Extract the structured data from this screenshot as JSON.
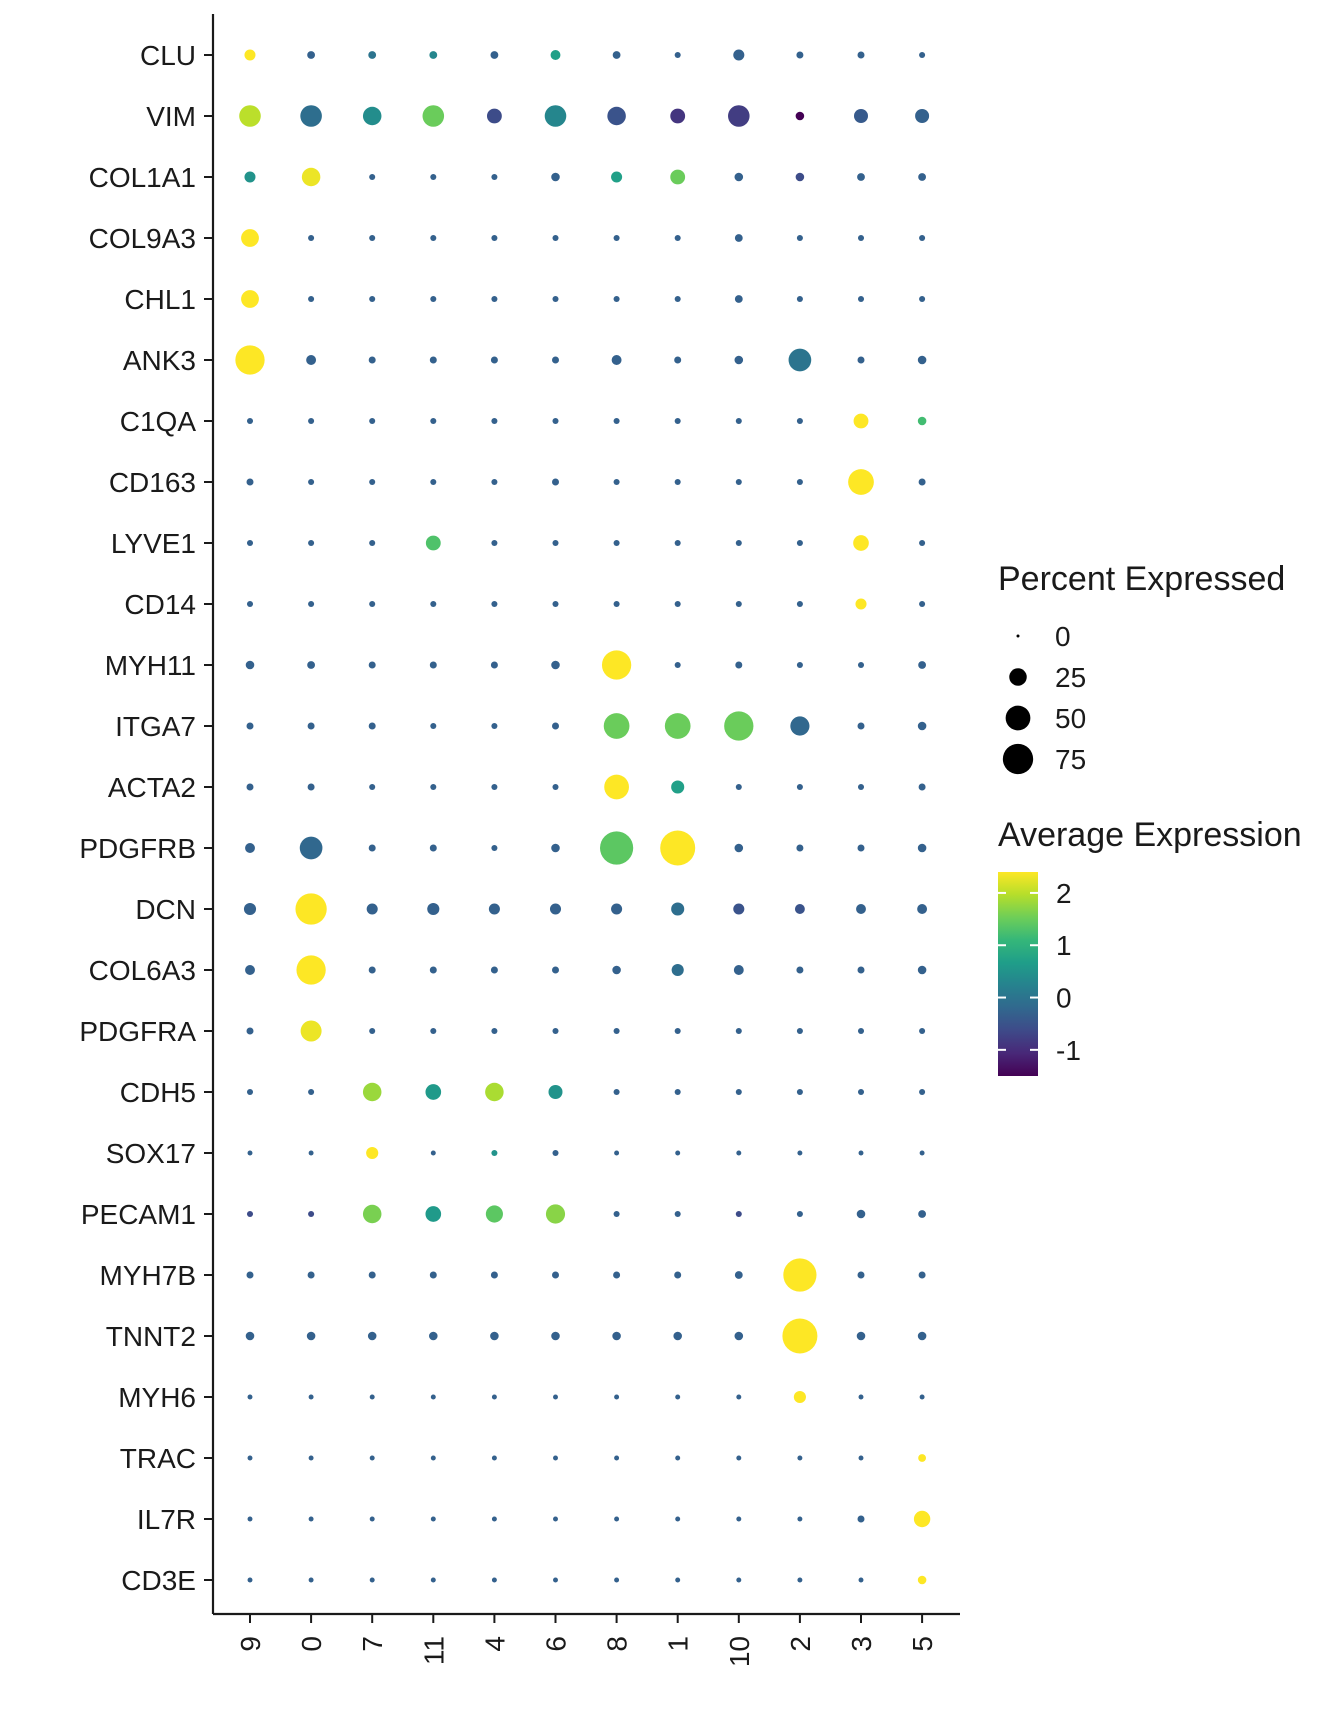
{
  "chart_data": {
    "type": "dotplot",
    "title": "",
    "xlabel": "",
    "ylabel": "",
    "clusters": [
      "9",
      "0",
      "7",
      "11",
      "4",
      "6",
      "8",
      "1",
      "10",
      "2",
      "3",
      "5"
    ],
    "genes": [
      "CLU",
      "VIM",
      "COL1A1",
      "COL9A3",
      "CHL1",
      "ANK3",
      "C1QA",
      "CD163",
      "LYVE1",
      "CD14",
      "MYH11",
      "ITGA7",
      "ACTA2",
      "PDGFRB",
      "DCN",
      "COL6A3",
      "PDGFRA",
      "CDH5",
      "SOX17",
      "PECAM1",
      "MYH7B",
      "TNNT2",
      "MYH6",
      "TRAC",
      "IL7R",
      "CD3E"
    ],
    "pct_range": [
      0,
      100
    ],
    "avg_range": [
      -1.5,
      2.4
    ],
    "percent_expressed": [
      [
        10,
        5,
        5,
        5,
        5,
        8,
        5,
        3,
        10,
        4,
        4,
        3
      ],
      [
        38,
        38,
        28,
        38,
        18,
        38,
        28,
        18,
        38,
        6,
        16,
        16
      ],
      [
        10,
        28,
        3,
        3,
        3,
        6,
        10,
        18,
        6,
        6,
        5,
        5
      ],
      [
        26,
        3,
        3,
        3,
        3,
        3,
        3,
        3,
        5,
        3,
        3,
        3
      ],
      [
        26,
        3,
        3,
        3,
        3,
        3,
        3,
        3,
        5,
        3,
        3,
        3
      ],
      [
        70,
        8,
        4,
        4,
        4,
        4,
        8,
        4,
        6,
        42,
        4,
        6
      ],
      [
        3,
        3,
        3,
        3,
        3,
        3,
        3,
        3,
        3,
        3,
        18,
        6
      ],
      [
        4,
        3,
        3,
        3,
        3,
        4,
        3,
        3,
        3,
        3,
        54,
        4
      ],
      [
        3,
        3,
        3,
        18,
        3,
        3,
        3,
        3,
        3,
        3,
        20,
        3
      ],
      [
        3,
        3,
        3,
        3,
        3,
        3,
        3,
        3,
        3,
        3,
        10,
        3
      ],
      [
        6,
        5,
        4,
        4,
        4,
        6,
        70,
        3,
        4,
        3,
        3,
        5
      ],
      [
        4,
        4,
        4,
        3,
        3,
        4,
        54,
        54,
        70,
        30,
        4,
        6
      ],
      [
        4,
        4,
        3,
        3,
        3,
        3,
        50,
        14,
        3,
        3,
        3,
        4
      ],
      [
        8,
        42,
        4,
        4,
        3,
        6,
        90,
        100,
        6,
        4,
        4,
        6
      ],
      [
        12,
        80,
        10,
        12,
        10,
        10,
        10,
        14,
        10,
        8,
        8,
        8
      ],
      [
        8,
        70,
        4,
        4,
        4,
        4,
        6,
        12,
        8,
        4,
        4,
        6
      ],
      [
        4,
        36,
        3,
        3,
        3,
        3,
        3,
        3,
        3,
        3,
        3,
        3
      ],
      [
        3,
        3,
        28,
        20,
        28,
        16,
        3,
        3,
        3,
        3,
        3,
        3
      ],
      [
        2,
        2,
        12,
        2,
        3,
        3,
        2,
        2,
        2,
        2,
        2,
        2
      ],
      [
        3,
        3,
        28,
        20,
        24,
        30,
        3,
        3,
        3,
        3,
        6,
        5
      ],
      [
        4,
        4,
        4,
        4,
        4,
        4,
        4,
        4,
        5,
        90,
        4,
        4
      ],
      [
        6,
        6,
        6,
        6,
        6,
        6,
        6,
        6,
        6,
        100,
        6,
        6
      ],
      [
        2,
        2,
        2,
        2,
        2,
        2,
        2,
        2,
        2,
        12,
        2,
        2
      ],
      [
        2,
        2,
        2,
        2,
        2,
        2,
        2,
        2,
        2,
        2,
        2,
        5
      ],
      [
        2,
        2,
        2,
        2,
        2,
        2,
        2,
        2,
        2,
        2,
        4,
        22
      ],
      [
        2,
        2,
        2,
        2,
        2,
        2,
        2,
        2,
        2,
        2,
        2,
        6
      ]
    ],
    "average_expression": [
      [
        2.4,
        -0.3,
        0.0,
        0.3,
        -0.3,
        0.7,
        -0.3,
        -0.3,
        -0.3,
        -0.3,
        -0.3,
        -0.3
      ],
      [
        2.0,
        -0.1,
        0.4,
        1.5,
        -0.6,
        0.3,
        -0.5,
        -0.9,
        -0.8,
        -1.5,
        -0.4,
        -0.3
      ],
      [
        0.5,
        2.3,
        -0.3,
        -0.3,
        -0.3,
        -0.3,
        0.7,
        1.5,
        -0.3,
        -0.6,
        -0.3,
        -0.3
      ],
      [
        2.4,
        -0.3,
        -0.3,
        -0.3,
        -0.3,
        -0.3,
        -0.3,
        -0.3,
        -0.3,
        -0.3,
        -0.3,
        -0.3
      ],
      [
        2.4,
        -0.3,
        -0.3,
        -0.3,
        -0.3,
        -0.3,
        -0.3,
        -0.3,
        -0.3,
        -0.3,
        -0.3,
        -0.3
      ],
      [
        2.4,
        -0.3,
        -0.3,
        -0.3,
        -0.3,
        -0.3,
        -0.3,
        -0.3,
        -0.3,
        0.0,
        -0.3,
        -0.3
      ],
      [
        -0.3,
        -0.3,
        -0.3,
        -0.3,
        -0.3,
        -0.3,
        -0.3,
        -0.3,
        -0.3,
        -0.3,
        2.4,
        1.2
      ],
      [
        -0.3,
        -0.3,
        -0.3,
        -0.3,
        -0.3,
        -0.3,
        -0.3,
        -0.3,
        -0.3,
        -0.3,
        2.4,
        -0.3
      ],
      [
        -0.3,
        -0.3,
        -0.3,
        1.3,
        -0.3,
        -0.3,
        -0.3,
        -0.3,
        -0.3,
        -0.3,
        2.4,
        -0.3
      ],
      [
        -0.3,
        -0.3,
        -0.3,
        -0.3,
        -0.3,
        -0.3,
        -0.3,
        -0.3,
        -0.3,
        -0.3,
        2.4,
        -0.3
      ],
      [
        -0.3,
        -0.3,
        -0.3,
        -0.3,
        -0.3,
        -0.3,
        2.4,
        -0.3,
        -0.3,
        -0.3,
        -0.3,
        -0.3
      ],
      [
        -0.3,
        -0.3,
        -0.3,
        -0.3,
        -0.3,
        -0.3,
        1.5,
        1.5,
        1.5,
        -0.2,
        -0.3,
        -0.3
      ],
      [
        -0.3,
        -0.3,
        -0.3,
        -0.3,
        -0.3,
        -0.3,
        2.4,
        0.7,
        -0.3,
        -0.3,
        -0.3,
        -0.3
      ],
      [
        -0.3,
        -0.2,
        -0.3,
        -0.3,
        -0.3,
        -0.3,
        1.4,
        2.4,
        -0.3,
        -0.3,
        -0.3,
        -0.3
      ],
      [
        -0.3,
        2.4,
        -0.3,
        -0.3,
        -0.3,
        -0.3,
        -0.3,
        -0.1,
        -0.5,
        -0.5,
        -0.3,
        -0.3
      ],
      [
        -0.3,
        2.4,
        -0.3,
        -0.3,
        -0.3,
        -0.3,
        -0.3,
        -0.1,
        -0.3,
        -0.3,
        -0.3,
        -0.3
      ],
      [
        -0.3,
        2.3,
        -0.3,
        -0.3,
        -0.3,
        -0.3,
        -0.3,
        -0.3,
        -0.3,
        -0.3,
        -0.3,
        -0.3
      ],
      [
        -0.3,
        -0.3,
        1.8,
        0.6,
        1.9,
        0.5,
        -0.3,
        -0.3,
        -0.3,
        -0.3,
        -0.3,
        -0.3
      ],
      [
        -0.3,
        -0.3,
        2.4,
        -0.3,
        0.5,
        -0.3,
        -0.3,
        -0.3,
        -0.3,
        -0.3,
        -0.3,
        -0.3
      ],
      [
        -0.6,
        -0.6,
        1.6,
        0.6,
        1.4,
        1.7,
        -0.3,
        -0.3,
        -0.6,
        -0.3,
        -0.3,
        -0.3
      ],
      [
        -0.3,
        -0.3,
        -0.3,
        -0.3,
        -0.3,
        -0.3,
        -0.3,
        -0.3,
        -0.3,
        2.4,
        -0.3,
        -0.3
      ],
      [
        -0.3,
        -0.3,
        -0.3,
        -0.3,
        -0.3,
        -0.3,
        -0.3,
        -0.3,
        -0.3,
        2.4,
        -0.3,
        -0.3
      ],
      [
        -0.3,
        -0.3,
        -0.3,
        -0.3,
        -0.3,
        -0.3,
        -0.3,
        -0.3,
        -0.3,
        2.4,
        -0.3,
        -0.3
      ],
      [
        -0.3,
        -0.3,
        -0.3,
        -0.3,
        -0.3,
        -0.3,
        -0.3,
        -0.3,
        -0.3,
        -0.3,
        -0.3,
        2.4
      ],
      [
        -0.3,
        -0.3,
        -0.3,
        -0.3,
        -0.3,
        -0.3,
        -0.3,
        -0.3,
        -0.3,
        -0.3,
        -0.3,
        2.4
      ],
      [
        -0.3,
        -0.3,
        -0.3,
        -0.3,
        -0.3,
        -0.3,
        -0.3,
        -0.3,
        -0.3,
        -0.3,
        -0.3,
        2.4
      ]
    ],
    "legend": {
      "size_title": "Percent Expressed",
      "size_breaks": [
        0,
        25,
        50,
        75
      ],
      "size_labels": [
        "0",
        "25",
        "50",
        "75"
      ],
      "color_title": "Average Expression",
      "color_breaks": [
        2,
        1,
        0,
        -1
      ],
      "color_labels": [
        "2",
        "1",
        "0",
        "-1"
      ],
      "placement": "right"
    },
    "palette": [
      "#440154",
      "#482878",
      "#3e4a89",
      "#31688e",
      "#26828e",
      "#1f9e89",
      "#35b779",
      "#6ece58",
      "#b5de2b",
      "#fde725"
    ]
  }
}
